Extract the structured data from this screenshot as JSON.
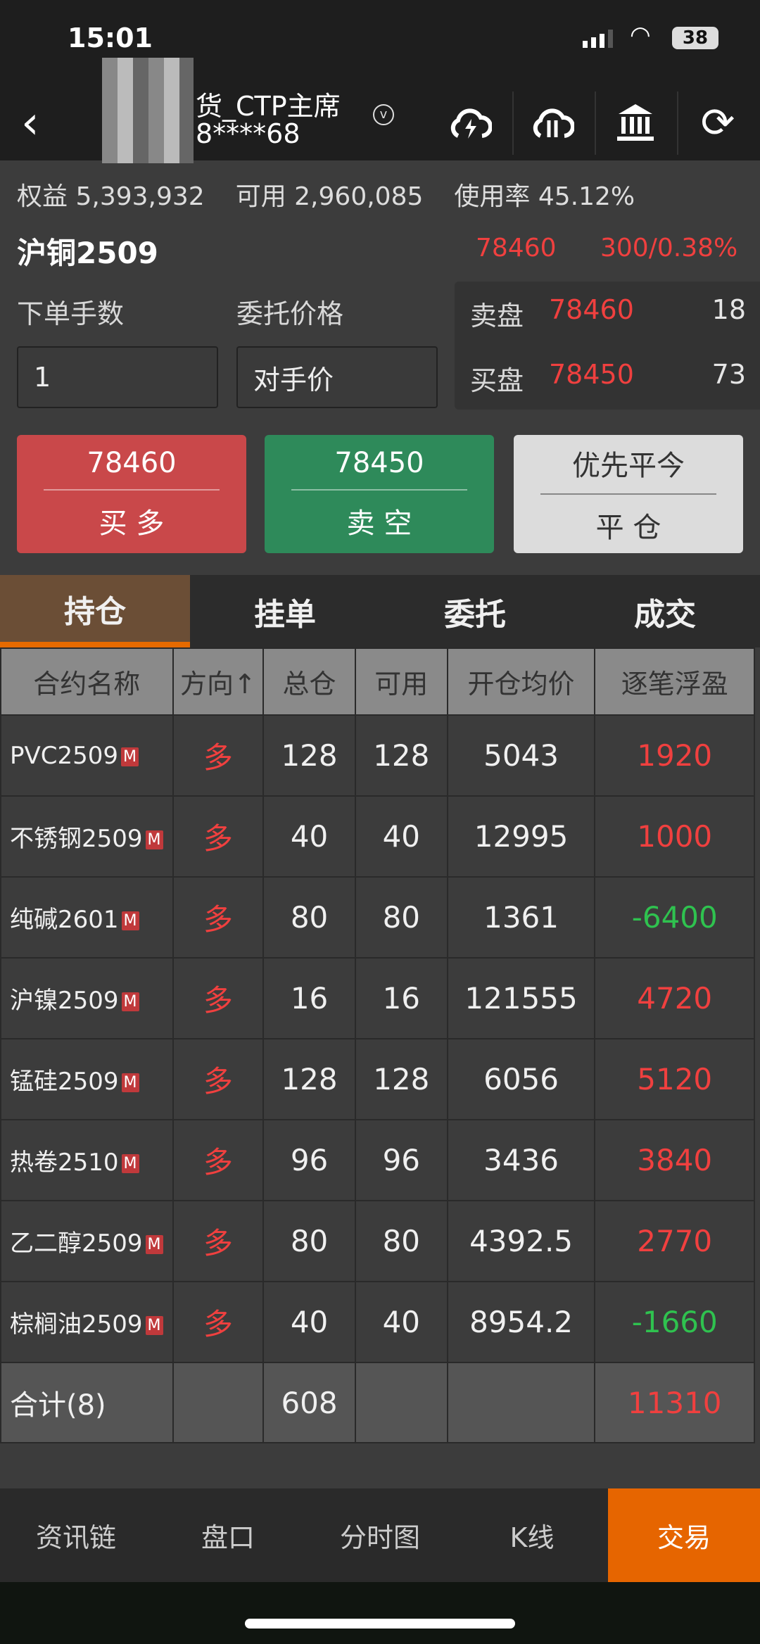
{
  "status": {
    "time": "15:01",
    "battery": "38"
  },
  "header": {
    "account_name": "货_CTP主席",
    "account_id": "8****68",
    "icons": [
      "back-icon",
      "cloud-lightning-icon",
      "cloud-transfer-icon",
      "bank-icon",
      "refresh-icon"
    ]
  },
  "account": {
    "equity_label": "权益",
    "equity": "5,393,932",
    "available_label": "可用",
    "available": "2,960,085",
    "usage_label": "使用率",
    "usage": "45.12%"
  },
  "contract": {
    "name": "沪铜2509",
    "price": "78460",
    "change": "300/0.38%"
  },
  "order": {
    "qty_label": "下单手数",
    "qty": "1",
    "price_label": "委托价格",
    "price": "对手价"
  },
  "book": {
    "ask_label": "卖盘",
    "ask_price": "78460",
    "ask_vol": "18",
    "bid_label": "买盘",
    "bid_price": "78450",
    "bid_vol": "73"
  },
  "buttons": {
    "buy_price": "78460",
    "buy_label": "买 多",
    "sell_price": "78450",
    "sell_label": "卖 空",
    "close_top": "优先平今",
    "close_label": "平 仓"
  },
  "tabs": [
    "持仓",
    "挂单",
    "委托",
    "成交"
  ],
  "table": {
    "headers": [
      "合约名称",
      "方向↑",
      "总仓",
      "可用",
      "开仓均价",
      "逐笔浮盈"
    ],
    "badge": "M",
    "rows": [
      {
        "name": "PVC2509",
        "dir": "多",
        "total": "128",
        "avail": "128",
        "avg": "5043",
        "pnl": "1920",
        "pnl_color": "red"
      },
      {
        "name": "不锈钢2509",
        "dir": "多",
        "total": "40",
        "avail": "40",
        "avg": "12995",
        "pnl": "1000",
        "pnl_color": "red"
      },
      {
        "name": "纯碱2601",
        "dir": "多",
        "total": "80",
        "avail": "80",
        "avg": "1361",
        "pnl": "-6400",
        "pnl_color": "green"
      },
      {
        "name": "沪镍2509",
        "dir": "多",
        "total": "16",
        "avail": "16",
        "avg": "121555",
        "pnl": "4720",
        "pnl_color": "red"
      },
      {
        "name": "锰硅2509",
        "dir": "多",
        "total": "128",
        "avail": "128",
        "avg": "6056",
        "pnl": "5120",
        "pnl_color": "red"
      },
      {
        "name": "热卷2510",
        "dir": "多",
        "total": "96",
        "avail": "96",
        "avg": "3436",
        "pnl": "3840",
        "pnl_color": "red"
      },
      {
        "name": "乙二醇2509",
        "dir": "多",
        "total": "80",
        "avail": "80",
        "avg": "4392.5",
        "pnl": "2770",
        "pnl_color": "red"
      },
      {
        "name": "棕榈油2509",
        "dir": "多",
        "total": "40",
        "avail": "40",
        "avg": "8954.2",
        "pnl": "-1660",
        "pnl_color": "green"
      }
    ],
    "total": {
      "label": "合计(8)",
      "total": "608",
      "pnl": "11310"
    }
  },
  "nav": [
    "资讯链",
    "盘口",
    "分时图",
    "K线",
    "交易"
  ],
  "colors": {
    "up": "#f0403f",
    "down": "#2fc24f",
    "accent": "#e66500",
    "buy": "#c9484a",
    "sell": "#2e8a5a"
  }
}
